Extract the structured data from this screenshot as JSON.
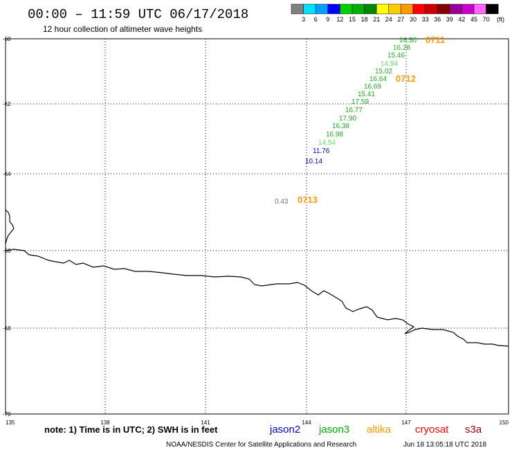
{
  "header": {
    "title": "00:00 – 11:59 UTC 06/17/2018",
    "subtitle": "12 hour collection of altimeter wave heights"
  },
  "legend": {
    "colors": [
      "#808080",
      "#00e0ff",
      "#00a0ff",
      "#0000ff",
      "#00d000",
      "#00b000",
      "#008800",
      "#ffff00",
      "#ffcc00",
      "#ff9900",
      "#ff0000",
      "#cc0000",
      "#880000",
      "#990099",
      "#cc00cc",
      "#ff66ff",
      "#000000"
    ],
    "labels": [
      "3",
      "6",
      "9",
      "12",
      "15",
      "18",
      "21",
      "24",
      "27",
      "30",
      "33",
      "36",
      "39",
      "42",
      "45",
      "70"
    ],
    "unit": "(ft)"
  },
  "axes": {
    "lat_labels": [
      "-60",
      "-62",
      "-64",
      "-66",
      "-68",
      "-70"
    ],
    "lon_labels": [
      "135",
      "138",
      "141",
      "144",
      "147",
      "150"
    ]
  },
  "observations": [
    {
      "value": "16.50",
      "color": "#22aa22"
    },
    {
      "value": "16.28",
      "color": "#22aa22"
    },
    {
      "value": "15.46",
      "color": "#22aa22"
    },
    {
      "value": "14.94",
      "color": "#66dd66"
    },
    {
      "value": "15.02",
      "color": "#22aa22"
    },
    {
      "value": "16.64",
      "color": "#22aa22"
    },
    {
      "value": "16.69",
      "color": "#22aa22"
    },
    {
      "value": "15.41",
      "color": "#22aa22"
    },
    {
      "value": "17.59",
      "color": "#22aa22"
    },
    {
      "value": "16.77",
      "color": "#22aa22"
    },
    {
      "value": "17.90",
      "color": "#22aa22"
    },
    {
      "value": "16.38",
      "color": "#22aa22"
    },
    {
      "value": "16.98",
      "color": "#22aa22"
    },
    {
      "value": "14.54",
      "color": "#66dd66"
    },
    {
      "value": "11.76",
      "color": "#0000cc"
    },
    {
      "value": "10.14",
      "color": "#0000cc"
    },
    {
      "value": "0.43",
      "color": "#777777"
    }
  ],
  "times": [
    "0711",
    "0712",
    "0713"
  ],
  "footer": {
    "note": "note: 1) Time is in UTC; 2) SWH is in feet",
    "satellites": [
      {
        "name": "jason2",
        "color": "#0000cc"
      },
      {
        "name": "jason3",
        "color": "#00aa00"
      },
      {
        "name": "altika",
        "color": "#ff9900"
      },
      {
        "name": "cryosat",
        "color": "#ff0000"
      },
      {
        "name": "s3a",
        "color": "#990000"
      }
    ],
    "credit": "NOAA/NESDIS Center for Satellite Applications and Research",
    "timestamp": "Jun 18 13:05:18 UTC 2018"
  }
}
